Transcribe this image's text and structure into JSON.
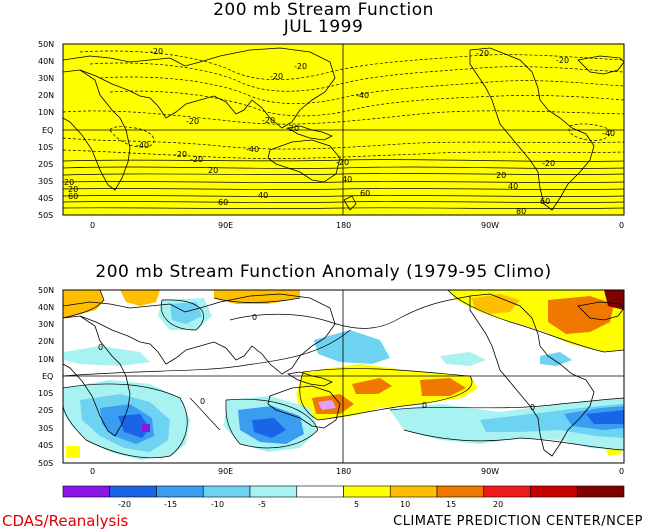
{
  "map1": {
    "title": "200 mb Stream Function",
    "subtitle": "JUL 1999",
    "lat_labels": [
      "50N",
      "40N",
      "30N",
      "20N",
      "10N",
      "EQ",
      "10S",
      "20S",
      "30S",
      "40S",
      "50S"
    ],
    "lon_labels": [
      "0",
      "90E",
      "180",
      "90W",
      "0"
    ],
    "contour_labels": [
      {
        "text": "-20"
      },
      {
        "text": "-20"
      },
      {
        "text": "-20"
      },
      {
        "text": "-20"
      },
      {
        "text": "-20"
      },
      {
        "text": "-40"
      },
      {
        "text": "-20"
      },
      {
        "text": "-20"
      },
      {
        "text": "-40"
      },
      {
        "text": "-20"
      },
      {
        "text": "-20"
      },
      {
        "text": "-20"
      },
      {
        "text": "-40"
      },
      {
        "text": "-40"
      },
      {
        "text": "-20"
      },
      {
        "text": "20"
      },
      {
        "text": "20"
      },
      {
        "text": "40"
      },
      {
        "text": "40"
      },
      {
        "text": "60"
      },
      {
        "text": "20"
      },
      {
        "text": "40"
      },
      {
        "text": "60"
      },
      {
        "text": "60"
      },
      {
        "text": "60"
      },
      {
        "text": "80"
      },
      {
        "text": "20"
      },
      {
        "text": "-20"
      }
    ],
    "fill_color": "#ffff00"
  },
  "map2": {
    "title": "200 mb Stream Function Anomaly (1979-95 Climo)",
    "lat_labels": [
      "50N",
      "40N",
      "30N",
      "20N",
      "10N",
      "EQ",
      "10S",
      "20S",
      "30S",
      "40S",
      "50S"
    ],
    "lon_labels": [
      "0",
      "90E",
      "180",
      "90W",
      "0"
    ],
    "contour_zero_label": "0"
  },
  "colorbar": {
    "labels": [
      "-20",
      "-15",
      "-10",
      "-5",
      "5",
      "10",
      "15",
      "20"
    ],
    "colors": [
      "#8b17e6",
      "#1a64e8",
      "#3a9df0",
      "#6ed2f2",
      "#a8f2f2",
      "#ffffff",
      "#ffff00",
      "#ffbf00",
      "#f07800",
      "#f01a1a",
      "#c80000",
      "#800000"
    ]
  },
  "footer": {
    "left": "CDAS/Reanalysis",
    "right": "CLIMATE PREDICTION CENTER/NCEP"
  }
}
